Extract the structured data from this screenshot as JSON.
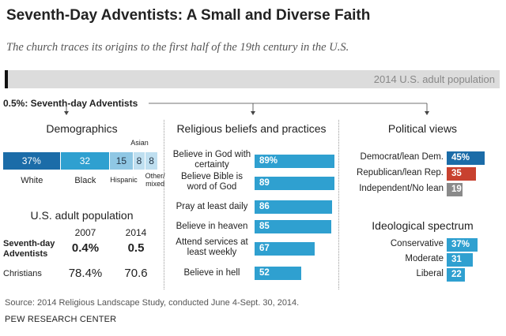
{
  "title": "Seventh-Day Adventists: A Small and Diverse Faith",
  "subtitle": "The church traces its origins to the first half of the 19th century in the U.S.",
  "population_bar": {
    "label": "2014 U.S. adult population",
    "sda_label": "0.5%: Seventh-day Adventists",
    "sda_share_percent": 0.5
  },
  "sections": {
    "demographics": "Demographics",
    "beliefs": "Religious beliefs and practices",
    "political": "Political views",
    "ideology": "Ideological spectrum",
    "us_pop": "U.S. adult population"
  },
  "colors": {
    "dark_blue": "#1b6ca8",
    "mid_blue": "#2fa0d0",
    "light_blue": "#8fc7e4",
    "pale_blue": "#bfdff0",
    "red": "#c8412f",
    "gray": "#8a8a8a"
  },
  "us_pop_table": {
    "years": [
      "2007",
      "2014"
    ],
    "rows": [
      {
        "label": "Seventh-day Adventists",
        "values": [
          "0.4%",
          "0.5"
        ]
      },
      {
        "label": "Christians",
        "values": [
          "78.4%",
          "70.6"
        ]
      }
    ]
  },
  "source": "Source: 2014 Religious Landscape Study, conducted June 4-Sept. 30, 2014.",
  "brand": "PEW RESEARCH CENTER",
  "chart_data": [
    {
      "type": "bar",
      "title": "Demographics",
      "categories": [
        "White",
        "Black",
        "Hispanic",
        "Asian",
        "Other/ mixed"
      ],
      "values": [
        37,
        32,
        15,
        8,
        8
      ],
      "labels": [
        "37%",
        "32",
        "15",
        "8",
        "8"
      ],
      "stacked": true
    },
    {
      "type": "bar",
      "title": "Religious beliefs and practices",
      "categories": [
        "Believe in God with certainty",
        "Believe Bible is word of God",
        "Pray at least daily",
        "Believe in heaven",
        "Attend services at least weekly",
        "Believe in hell"
      ],
      "values": [
        89,
        89,
        86,
        85,
        67,
        52
      ],
      "labels": [
        "89%",
        "89",
        "86",
        "85",
        "67",
        "52"
      ]
    },
    {
      "type": "bar",
      "title": "Political views",
      "categories": [
        "Democrat/lean Dem.",
        "Republican/lean Rep.",
        "Independent/No lean"
      ],
      "values": [
        45,
        35,
        19
      ],
      "labels": [
        "45%",
        "35",
        "19"
      ]
    },
    {
      "type": "bar",
      "title": "Ideological spectrum",
      "categories": [
        "Conservative",
        "Moderate",
        "Liberal"
      ],
      "values": [
        37,
        31,
        22
      ],
      "labels": [
        "37%",
        "31",
        "22"
      ]
    }
  ]
}
